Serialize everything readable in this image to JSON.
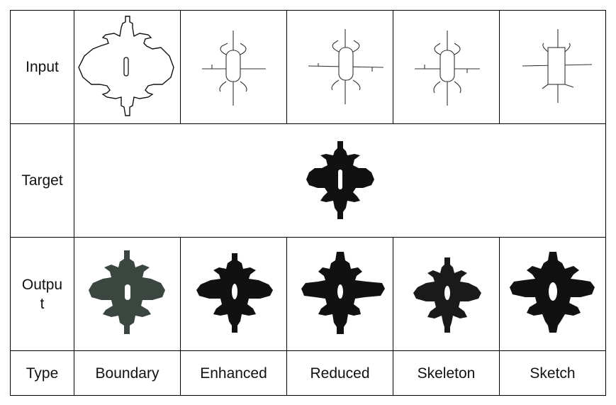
{
  "rows": {
    "input": "Input",
    "target": "Target",
    "output_line1": "Outpu",
    "output_line2": "t",
    "type": "Type"
  },
  "types": [
    "Boundary",
    "Enhanced",
    "Reduced",
    "Skeleton",
    "Sketch"
  ],
  "images": {
    "input": [
      "boundary-sketch",
      "enhanced-sketch",
      "reduced-sketch",
      "skeleton-sketch",
      "rough-sketch"
    ],
    "target": "target-shape",
    "output": [
      "boundary-output",
      "enhanced-output",
      "reduced-output",
      "skeleton-output",
      "sketch-output"
    ]
  },
  "colors": {
    "border": "#000000",
    "shape": "#111111",
    "output_boundary": "#3a463f"
  }
}
